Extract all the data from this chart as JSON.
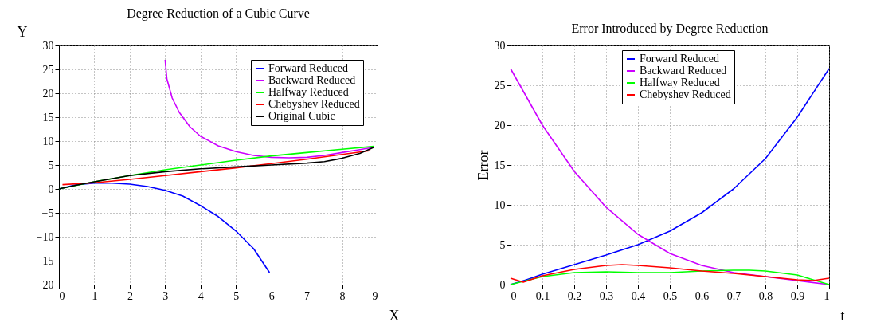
{
  "chart_data": [
    {
      "type": "line",
      "title": "Degree Reduction of a Cubic Curve",
      "xlabel": "X",
      "ylabel": "Y",
      "xlim": [
        0,
        9
      ],
      "ylim": [
        -20,
        30
      ],
      "xticks": [
        0,
        1,
        2,
        3,
        4,
        5,
        6,
        7,
        8,
        9
      ],
      "yticks": [
        -20,
        -15,
        -10,
        -5,
        0,
        5,
        10,
        15,
        20,
        25,
        30
      ],
      "grid": true,
      "legend": "top right",
      "line_style": "solid",
      "series": [
        {
          "name": "Forward Reduced",
          "color": "#0000ff",
          "x": [
            0,
            0.5,
            1,
            1.5,
            2,
            2.5,
            3,
            3.5,
            4,
            4.5,
            5,
            5.5,
            5.95
          ],
          "values": [
            0,
            0.9,
            1.2,
            1.2,
            1.0,
            0.5,
            -0.3,
            -1.5,
            -3.5,
            -5.8,
            -8.8,
            -12.5,
            -17.5
          ]
        },
        {
          "name": "Backward Reduced",
          "color": "#cc00ff",
          "x": [
            3,
            3.05,
            3.2,
            3.4,
            3.7,
            4,
            4.5,
            5,
            5.5,
            6,
            6.5,
            7,
            7.5,
            8,
            8.5,
            8.9
          ],
          "values": [
            27,
            23,
            19,
            16,
            13,
            11,
            9,
            7.8,
            7,
            6.6,
            6.5,
            6.6,
            7,
            7.6,
            8.2,
            8.7
          ]
        },
        {
          "name": "Halfway Reduced",
          "color": "#00ff00",
          "x": [
            0,
            1,
            2,
            3,
            4,
            5,
            6,
            7,
            8,
            8.9
          ],
          "values": [
            0,
            1.5,
            2.8,
            4,
            5,
            6,
            6.9,
            7.6,
            8.3,
            8.9
          ]
        },
        {
          "name": "Chebyshev Reduced",
          "color": "#ff0000",
          "x": [
            0.1,
            1,
            2,
            3,
            4,
            5,
            6,
            7,
            8,
            8.8
          ],
          "values": [
            0.9,
            1.3,
            2,
            2.8,
            3.6,
            4.4,
            5.3,
            6.2,
            7.2,
            8.0
          ]
        },
        {
          "name": "Original Cubic",
          "color": "#000000",
          "x": [
            0,
            0.5,
            1,
            2,
            3,
            4,
            5,
            6,
            7,
            7.5,
            8,
            8.5,
            8.9
          ],
          "values": [
            0,
            0.8,
            1.5,
            2.8,
            3.6,
            4.2,
            4.6,
            5.0,
            5.4,
            5.7,
            6.4,
            7.4,
            8.7
          ]
        }
      ]
    },
    {
      "type": "line",
      "title": "Error Introduced by Degree Reduction",
      "xlabel": "t",
      "ylabel": "Error",
      "xlim": [
        0,
        1
      ],
      "ylim": [
        0,
        30
      ],
      "xticks": [
        0,
        0.1,
        0.2,
        0.3,
        0.4,
        0.5,
        0.6,
        0.7,
        0.8,
        0.9,
        1
      ],
      "yticks": [
        0,
        5,
        10,
        15,
        20,
        25,
        30
      ],
      "grid": true,
      "legend": "top",
      "line_style": "solid",
      "series": [
        {
          "name": "Forward Reduced",
          "color": "#0000ff",
          "x": [
            0,
            0.05,
            0.1,
            0.2,
            0.3,
            0.4,
            0.5,
            0.6,
            0.7,
            0.8,
            0.9,
            1
          ],
          "values": [
            0,
            0.6,
            1.3,
            2.5,
            3.7,
            5.0,
            6.7,
            9.0,
            12.0,
            15.8,
            21,
            27.1
          ]
        },
        {
          "name": "Backward Reduced",
          "color": "#cc00ff",
          "x": [
            0,
            0.1,
            0.2,
            0.3,
            0.4,
            0.5,
            0.6,
            0.7,
            0.8,
            0.9,
            1
          ],
          "values": [
            27.1,
            20,
            14.2,
            9.7,
            6.3,
            3.9,
            2.4,
            1.5,
            1.0,
            0.5,
            0
          ]
        },
        {
          "name": "Halfway Reduced",
          "color": "#00ff00",
          "x": [
            0,
            0.1,
            0.2,
            0.3,
            0.4,
            0.5,
            0.6,
            0.7,
            0.75,
            0.8,
            0.9,
            1
          ],
          "values": [
            0,
            1,
            1.5,
            1.6,
            1.5,
            1.5,
            1.7,
            1.8,
            1.8,
            1.7,
            1.2,
            0
          ]
        },
        {
          "name": "Chebyshev Reduced",
          "color": "#ff0000",
          "x": [
            0,
            0.04,
            0.1,
            0.2,
            0.3,
            0.35,
            0.4,
            0.5,
            0.6,
            0.7,
            0.8,
            0.9,
            0.95,
            1
          ],
          "values": [
            0.8,
            0.3,
            1.1,
            1.9,
            2.4,
            2.5,
            2.4,
            2.1,
            1.7,
            1.4,
            1.0,
            0.6,
            0.5,
            0.8
          ]
        }
      ]
    }
  ]
}
